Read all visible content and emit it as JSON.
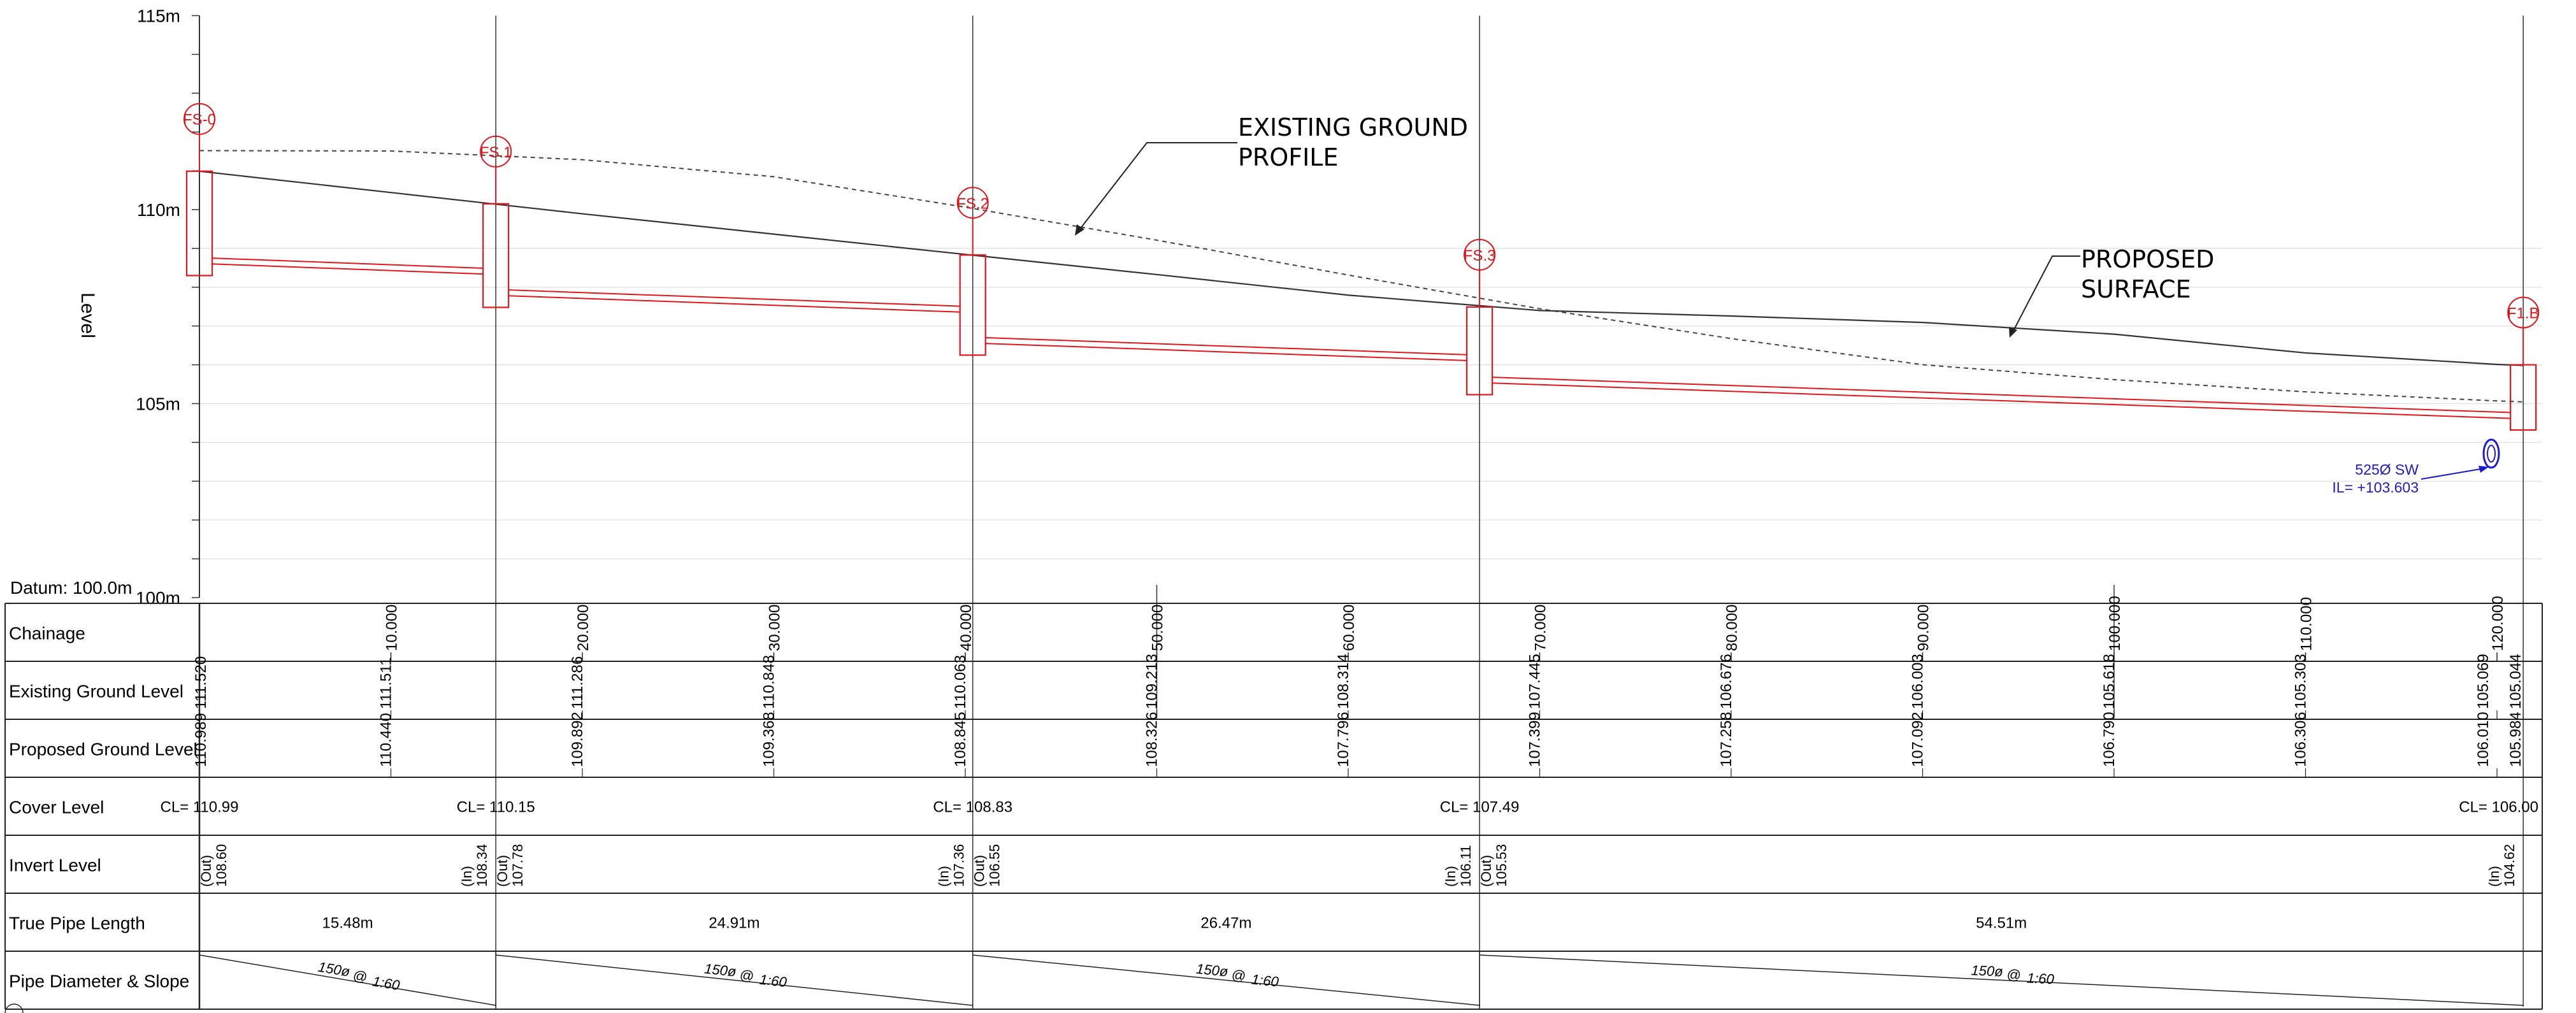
{
  "level_axis": {
    "title": "Level",
    "ticks": [
      {
        "value": 115,
        "label": "115m"
      },
      {
        "value": 110,
        "label": "110m"
      },
      {
        "value": 105,
        "label": "105m"
      },
      {
        "value": 100,
        "label": "100m"
      }
    ],
    "datum": "Datum: 100.0m",
    "range": [
      100,
      115
    ]
  },
  "annotations": {
    "existing_ground_line1": "EXISTING GROUND",
    "existing_ground_line2": "PROFILE",
    "proposed_line1": "PROPOSED",
    "proposed_line2": "SURFACE",
    "sw_pipe_line1": "525Ø SW",
    "sw_pipe_line2": "IL= +103.603"
  },
  "colors": {
    "manhole": "#e0161b",
    "pipe": "#e0161b",
    "existing_pipe": "#1c1ccf",
    "linework": "#333333"
  },
  "manholes": [
    {
      "id": "FS-0",
      "chainage": 0.0,
      "cover": 110.99,
      "invert_out": 108.6
    },
    {
      "id": "FS.1",
      "chainage": 15.48,
      "cover": 110.15,
      "invert_in": 108.34,
      "invert_out": 107.78
    },
    {
      "id": "FS.2",
      "chainage": 40.39,
      "cover": 108.83,
      "invert_in": 107.36,
      "invert_out": 106.55
    },
    {
      "id": "FS.3",
      "chainage": 66.86,
      "cover": 107.49,
      "invert_in": 106.11,
      "invert_out": 105.53
    },
    {
      "id": "F1.B",
      "chainage": 121.37,
      "cover": 106.0,
      "invert_in": 104.62
    }
  ],
  "table": {
    "row_labels": {
      "chainage": "Chainage",
      "existing": "Existing Ground Level",
      "proposed": "Proposed Ground Level",
      "cover": "Cover Level",
      "invert": "Invert Level",
      "length": "True Pipe Length",
      "diameter": "Pipe Diameter & Slope"
    },
    "chainage_ticks": [
      {
        "value": 10,
        "label": "10.000"
      },
      {
        "value": 20,
        "label": "20.000"
      },
      {
        "value": 30,
        "label": "30.000"
      },
      {
        "value": 40,
        "label": "40.000"
      },
      {
        "value": 50,
        "label": "50.000"
      },
      {
        "value": 60,
        "label": "60.000"
      },
      {
        "value": 70,
        "label": "70.000"
      },
      {
        "value": 80,
        "label": "80.000"
      },
      {
        "value": 90,
        "label": "90.000"
      },
      {
        "value": 100,
        "label": "100.000"
      },
      {
        "value": 110,
        "label": "110.000"
      },
      {
        "value": 120,
        "label": "120.000"
      }
    ],
    "existing_ground_levels": [
      {
        "chainage": 0.0,
        "label": "111.520"
      },
      {
        "chainage": 10.0,
        "label": "111.511"
      },
      {
        "chainage": 20.0,
        "label": "111.286"
      },
      {
        "chainage": 30.0,
        "label": "110.848"
      },
      {
        "chainage": 40.0,
        "label": "110.063"
      },
      {
        "chainage": 50.0,
        "label": "109.213"
      },
      {
        "chainage": 60.0,
        "label": "108.314"
      },
      {
        "chainage": 70.0,
        "label": "107.445"
      },
      {
        "chainage": 80.0,
        "label": "106.676"
      },
      {
        "chainage": 90.0,
        "label": "106.003"
      },
      {
        "chainage": 100.0,
        "label": "105.618"
      },
      {
        "chainage": 110.0,
        "label": "105.303"
      },
      {
        "chainage": 120.0,
        "label": "105.069"
      },
      {
        "chainage": 121.37,
        "label": "105.044"
      }
    ],
    "proposed_ground_levels": [
      {
        "chainage": 0.0,
        "label": "110.989"
      },
      {
        "chainage": 10.0,
        "label": "110.440"
      },
      {
        "chainage": 20.0,
        "label": "109.892"
      },
      {
        "chainage": 30.0,
        "label": "109.368"
      },
      {
        "chainage": 40.0,
        "label": "108.845"
      },
      {
        "chainage": 50.0,
        "label": "108.326"
      },
      {
        "chainage": 60.0,
        "label": "107.796"
      },
      {
        "chainage": 70.0,
        "label": "107.399"
      },
      {
        "chainage": 80.0,
        "label": "107.258"
      },
      {
        "chainage": 90.0,
        "label": "107.092"
      },
      {
        "chainage": 100.0,
        "label": "106.790"
      },
      {
        "chainage": 110.0,
        "label": "106.306"
      },
      {
        "chainage": 120.0,
        "label": "106.010"
      },
      {
        "chainage": 121.37,
        "label": "105.984"
      }
    ],
    "cover_levels": [
      {
        "chainage": 0.0,
        "label": "CL= 110.99"
      },
      {
        "chainage": 15.48,
        "label": "CL= 110.15"
      },
      {
        "chainage": 40.39,
        "label": "CL= 108.83"
      },
      {
        "chainage": 66.86,
        "label": "CL= 107.49"
      },
      {
        "chainage": 121.37,
        "label": "CL= 106.00"
      }
    ],
    "invert_levels": [
      {
        "chainage": 0.0,
        "side": "out",
        "tag": "(Out)",
        "value": "108.60"
      },
      {
        "chainage": 15.48,
        "side": "in",
        "tag": "(In)",
        "value": "108.34"
      },
      {
        "chainage": 15.48,
        "side": "out",
        "tag": "(Out)",
        "value": "107.78"
      },
      {
        "chainage": 40.39,
        "side": "in",
        "tag": "(In)",
        "value": "107.36"
      },
      {
        "chainage": 40.39,
        "side": "out",
        "tag": "(Out)",
        "value": "106.55"
      },
      {
        "chainage": 66.86,
        "side": "in",
        "tag": "(In)",
        "value": "106.11"
      },
      {
        "chainage": 66.86,
        "side": "out",
        "tag": "(Out)",
        "value": "105.53"
      },
      {
        "chainage": 121.37,
        "side": "in",
        "tag": "(In)",
        "value": "104.62"
      }
    ],
    "pipe_lengths": [
      {
        "from": 0.0,
        "to": 15.48,
        "label": "15.48m"
      },
      {
        "from": 15.48,
        "to": 40.39,
        "label": "24.91m"
      },
      {
        "from": 40.39,
        "to": 66.86,
        "label": "26.47m"
      },
      {
        "from": 66.86,
        "to": 121.37,
        "label": "54.51m"
      }
    ],
    "pipe_diameters": [
      {
        "from": 0.0,
        "to": 15.48,
        "diameter": "150ø",
        "at": "@",
        "slope": "1:60"
      },
      {
        "from": 15.48,
        "to": 40.39,
        "diameter": "150ø",
        "at": "@",
        "slope": "1:60"
      },
      {
        "from": 40.39,
        "to": 66.86,
        "diameter": "150ø",
        "at": "@",
        "slope": "1:60"
      },
      {
        "from": 66.86,
        "to": 121.37,
        "diameter": "150ø",
        "at": "@",
        "slope": "1:60"
      }
    ]
  },
  "profiles": {
    "existing_ground": [
      {
        "chainage": 0.0,
        "level": 111.52
      },
      {
        "chainage": 10.0,
        "level": 111.511
      },
      {
        "chainage": 20.0,
        "level": 111.286
      },
      {
        "chainage": 30.0,
        "level": 110.848
      },
      {
        "chainage": 40.0,
        "level": 110.063
      },
      {
        "chainage": 50.0,
        "level": 109.213
      },
      {
        "chainage": 60.0,
        "level": 108.314
      },
      {
        "chainage": 70.0,
        "level": 107.445
      },
      {
        "chainage": 80.0,
        "level": 106.676
      },
      {
        "chainage": 90.0,
        "level": 106.003
      },
      {
        "chainage": 100.0,
        "level": 105.618
      },
      {
        "chainage": 110.0,
        "level": 105.303
      },
      {
        "chainage": 120.0,
        "level": 105.069
      },
      {
        "chainage": 121.37,
        "level": 105.044
      }
    ],
    "proposed_surface": [
      {
        "chainage": 0.0,
        "level": 110.989
      },
      {
        "chainage": 10.0,
        "level": 110.44
      },
      {
        "chainage": 20.0,
        "level": 109.892
      },
      {
        "chainage": 30.0,
        "level": 109.368
      },
      {
        "chainage": 40.0,
        "level": 108.845
      },
      {
        "chainage": 50.0,
        "level": 108.326
      },
      {
        "chainage": 60.0,
        "level": 107.796
      },
      {
        "chainage": 70.0,
        "level": 107.399
      },
      {
        "chainage": 80.0,
        "level": 107.258
      },
      {
        "chainage": 90.0,
        "level": 107.092
      },
      {
        "chainage": 100.0,
        "level": 106.79
      },
      {
        "chainage": 110.0,
        "level": 106.306
      },
      {
        "chainage": 120.0,
        "level": 106.01
      },
      {
        "chainage": 121.37,
        "level": 105.984
      }
    ]
  },
  "existing_sw_pipe": {
    "chainage": 119.0,
    "invert": 103.603,
    "diameter_mm": 525
  }
}
